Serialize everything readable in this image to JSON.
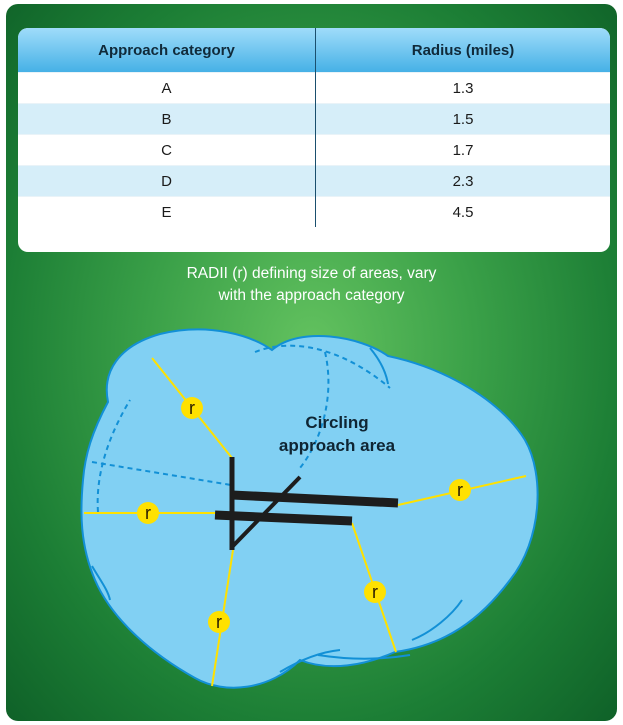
{
  "table": {
    "headers": [
      "Approach category",
      "Radius (miles)"
    ],
    "rows": [
      [
        "A",
        "1.3"
      ],
      [
        "B",
        "1.5"
      ],
      [
        "C",
        "1.7"
      ],
      [
        "D",
        "2.3"
      ],
      [
        "E",
        "4.5"
      ]
    ]
  },
  "caption": {
    "line1": "RADII (r) defining size of areas, vary",
    "line2": "with the approach category"
  },
  "diagram": {
    "area_label_line1": "Circling",
    "area_label_line2": "approach area",
    "radius_symbol": "r",
    "colors": {
      "area_fill": "#81d0f3",
      "area_stroke": "#1290d6",
      "radius_line": "#ffe100",
      "marker_fill": "#ffe100",
      "runway": "#1d1d1d"
    }
  }
}
